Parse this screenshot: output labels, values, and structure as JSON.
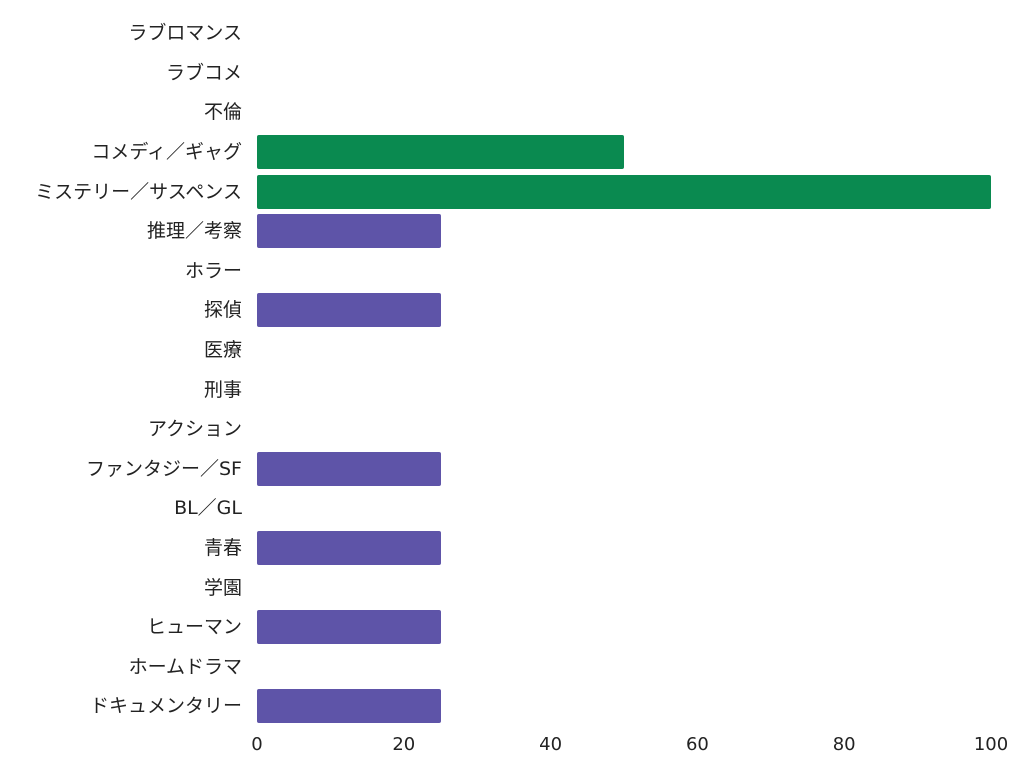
{
  "chart_data": {
    "type": "bar",
    "orientation": "horizontal",
    "title": "",
    "xlabel": "",
    "ylabel": "",
    "xlim": [
      0,
      100
    ],
    "grid": false,
    "legend": null,
    "xticks": [
      "0",
      "20",
      "40",
      "60",
      "80",
      "100"
    ],
    "categories": [
      "ラブロマンス",
      "ラブコメ",
      "不倫",
      "コメディ／ギャグ",
      "ミステリー／サスペンス",
      "推理／考察",
      "ホラー",
      "探偵",
      "医療",
      "刑事",
      "アクション",
      "ファンタジー／SF",
      "BL／GL",
      "青春",
      "学園",
      "ヒューマン",
      "ホームドラマ",
      "ドキュメンタリー"
    ],
    "values": [
      0,
      0,
      0,
      50,
      100,
      25,
      0,
      25,
      0,
      0,
      0,
      25,
      0,
      25,
      0,
      25,
      0,
      25
    ],
    "bar_colors": [
      "#5e54a8",
      "#5e54a8",
      "#5e54a8",
      "#0a8a50",
      "#0a8a50",
      "#5e54a8",
      "#5e54a8",
      "#5e54a8",
      "#5e54a8",
      "#5e54a8",
      "#5e54a8",
      "#5e54a8",
      "#5e54a8",
      "#5e54a8",
      "#5e54a8",
      "#5e54a8",
      "#5e54a8",
      "#5e54a8"
    ],
    "colors": {
      "highlight": "#0a8a50",
      "default": "#5e54a8"
    }
  }
}
